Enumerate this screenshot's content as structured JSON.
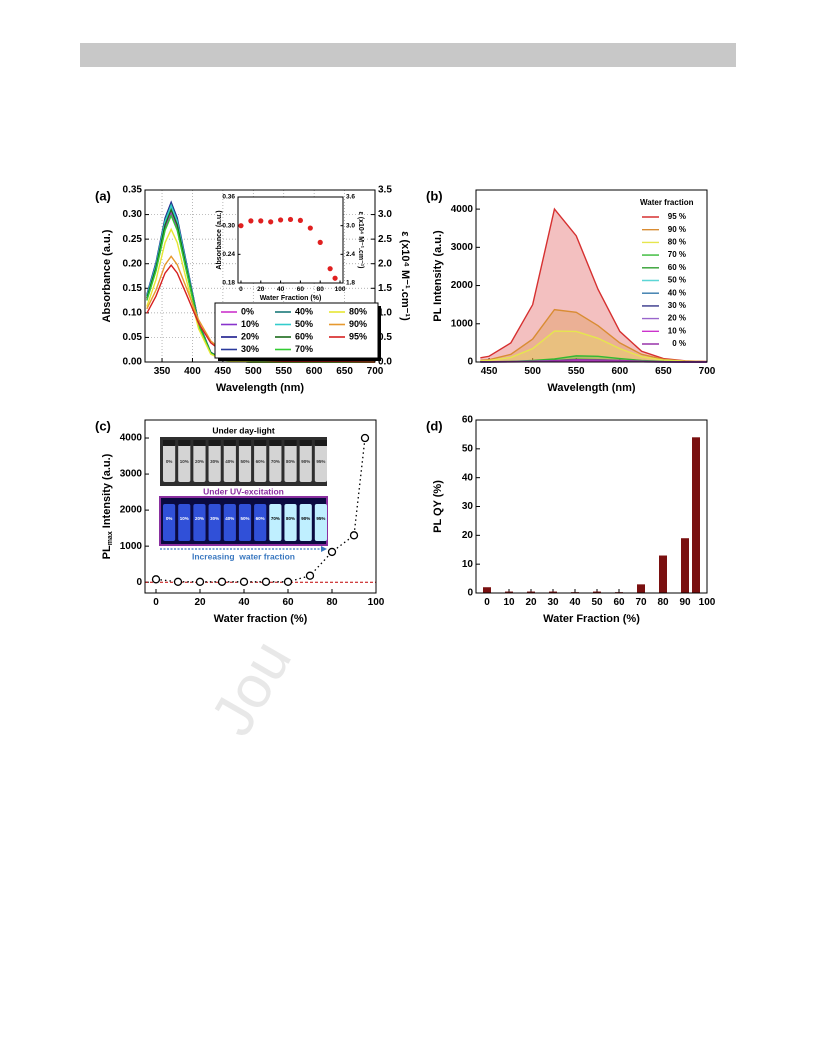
{
  "watermark": "Jou",
  "chart_data": [
    {
      "type": "line",
      "label": "(a)",
      "xlabel": "Wavelength (nm)",
      "ylabel": "Absorbance (a.u.)",
      "y2label": "ε (x10⁴ M⁻¹.cm⁻¹)",
      "xlim": [
        322,
        700
      ],
      "xticks": [
        350,
        400,
        450,
        500,
        550,
        600,
        650,
        700
      ],
      "ylim": [
        0,
        0.35
      ],
      "yticks": [
        {
          "value": 0,
          "label": "0.00"
        },
        0.05,
        {
          "value": 0.1,
          "label": "0.10"
        },
        0.15,
        {
          "value": 0.2,
          "label": "0.20"
        },
        0.25,
        {
          "value": 0.3,
          "label": "0.30"
        },
        0.35
      ],
      "y2lim": [
        0,
        3.5
      ],
      "y2ticks": [
        {
          "value": 0,
          "label": "0.0"
        },
        0.5,
        {
          "value": 1,
          "label": "1.0"
        },
        1.5,
        {
          "value": 2,
          "label": "2.0"
        },
        2.5,
        {
          "value": 3,
          "label": "3.0"
        },
        3.5
      ],
      "grid": true,
      "legend": "lower right",
      "legend_columns": 3,
      "x": [
        325,
        340,
        355,
        365,
        375,
        390,
        410,
        430,
        450,
        475,
        500,
        600,
        700
      ],
      "series": [
        {
          "name": "0%",
          "color": "#cc33cc",
          "values": [
            0.128,
            0.189,
            0.275,
            0.305,
            0.275,
            0.189,
            0.076,
            0.018,
            0.005,
            0.001,
            0,
            0,
            0
          ]
        },
        {
          "name": "10%",
          "color": "#8833cc",
          "values": [
            0.126,
            0.186,
            0.27,
            0.3,
            0.27,
            0.186,
            0.075,
            0.018,
            0.005,
            0.001,
            0,
            0,
            0
          ]
        },
        {
          "name": "20%",
          "color": "#1a1a8c",
          "values": [
            0.137,
            0.202,
            0.293,
            0.325,
            0.293,
            0.202,
            0.081,
            0.02,
            0.005,
            0.001,
            0,
            0,
            0
          ]
        },
        {
          "name": "30%",
          "color": "#2a3a9c",
          "values": [
            0.135,
            0.2,
            0.29,
            0.322,
            0.29,
            0.2,
            0.081,
            0.019,
            0.005,
            0.001,
            0,
            0,
            0
          ]
        },
        {
          "name": "40%",
          "color": "#1a7a7a",
          "values": [
            0.134,
            0.198,
            0.288,
            0.32,
            0.288,
            0.198,
            0.08,
            0.019,
            0.005,
            0.001,
            0,
            0,
            0
          ]
        },
        {
          "name": "50%",
          "color": "#33cccc",
          "values": [
            0.134,
            0.197,
            0.286,
            0.318,
            0.286,
            0.197,
            0.08,
            0.019,
            0.005,
            0.001,
            0,
            0,
            0
          ]
        },
        {
          "name": "60%",
          "color": "#1a6a1a",
          "values": [
            0.13,
            0.192,
            0.279,
            0.31,
            0.279,
            0.192,
            0.078,
            0.019,
            0.005,
            0.001,
            0,
            0,
            0
          ]
        },
        {
          "name": "70%",
          "color": "#33cc33",
          "values": [
            0.125,
            0.185,
            0.268,
            0.298,
            0.268,
            0.185,
            0.075,
            0.018,
            0.004,
            0.001,
            0,
            0,
            0
          ]
        },
        {
          "name": "80%",
          "color": "#e6e633",
          "values": [
            0.113,
            0.167,
            0.243,
            0.27,
            0.243,
            0.167,
            0.068,
            0.016,
            0.004,
            0.001,
            0,
            0,
            0
          ]
        },
        {
          "name": "90%",
          "color": "#e6992e",
          "values": [
            0.108,
            0.146,
            0.198,
            0.215,
            0.198,
            0.151,
            0.086,
            0.043,
            0.022,
            0.009,
            0.004,
            0.001,
            0
          ]
        },
        {
          "name": "95%",
          "color": "#d62020",
          "values": [
            0.099,
            0.134,
            0.181,
            0.197,
            0.181,
            0.138,
            0.079,
            0.039,
            0.02,
            0.008,
            0.004,
            0.001,
            0
          ]
        }
      ]
    },
    {
      "type": "scatter",
      "xlabel": "Water Fraction (%)",
      "ylabel": "Absorbance (a.u.)",
      "y2label": "ε (x10⁴ M⁻¹.cm⁻¹)",
      "xlim": [
        -3,
        103
      ],
      "xticks": [
        0,
        20,
        40,
        60,
        80,
        100
      ],
      "ylim": [
        0.18,
        0.36
      ],
      "yticks": [
        0.18,
        0.24,
        {
          "value": 0.3,
          "label": "0.30"
        },
        0.36
      ],
      "y2lim": [
        1.8,
        3.6
      ],
      "y2ticks": [
        1.8,
        2.4,
        {
          "value": 3,
          "label": "3.0"
        },
        3.6
      ],
      "markers": "filled",
      "color": "#e02020",
      "x": [
        0,
        10,
        20,
        30,
        40,
        50,
        60,
        70,
        80,
        90,
        95
      ],
      "values": [
        0.3,
        0.31,
        0.31,
        0.308,
        0.312,
        0.313,
        0.311,
        0.295,
        0.265,
        0.21,
        0.19
      ]
    },
    {
      "type": "line",
      "label": "(b)",
      "xlabel": "Wavelength (nm)",
      "ylabel": "PL Intensity (a.u.)",
      "fill": true,
      "xlim": [
        435,
        700
      ],
      "xticks": [
        450,
        500,
        550,
        600,
        650,
        700
      ],
      "ylim": [
        0,
        4500
      ],
      "yticks": [
        0,
        1000,
        2000,
        3000,
        4000
      ],
      "legend": "upper right",
      "legend_title": "Water fraction",
      "x": [
        440,
        450,
        475,
        500,
        525,
        550,
        575,
        600,
        625,
        650,
        675,
        700
      ],
      "series": [
        {
          "name": "95 %",
          "color": "#d63030",
          "values": [
            110,
            150,
            500,
            1500,
            4000,
            3300,
            1900,
            800,
            280,
            90,
            30,
            10
          ]
        },
        {
          "name": "90 %",
          "color": "#d98c33",
          "values": [
            45,
            60,
            200,
            600,
            1370,
            1300,
            950,
            500,
            200,
            70,
            25,
            10
          ]
        },
        {
          "name": "80 %",
          "color": "#e6e64d",
          "values": [
            30,
            40,
            120,
            350,
            810,
            800,
            620,
            350,
            140,
            50,
            20,
            5
          ]
        },
        {
          "name": "70 %",
          "color": "#33b833",
          "values": [
            4,
            5,
            15,
            40,
            80,
            160,
            150,
            90,
            40,
            15,
            5,
            0
          ]
        },
        {
          "name": "60 %",
          "color": "#2e9e2e",
          "values": [
            2,
            3,
            10,
            25,
            45,
            70,
            60,
            40,
            15,
            5,
            0,
            0
          ]
        },
        {
          "name": "50 %",
          "color": "#5cd6d6",
          "values": [
            2,
            3,
            8,
            20,
            35,
            50,
            45,
            30,
            10,
            4,
            0,
            0
          ]
        },
        {
          "name": "40 %",
          "color": "#3377aa",
          "values": [
            1,
            2,
            5,
            15,
            25,
            35,
            30,
            20,
            8,
            3,
            0,
            0
          ]
        },
        {
          "name": "30 %",
          "color": "#333388",
          "values": [
            1,
            2,
            5,
            12,
            20,
            28,
            25,
            15,
            6,
            2,
            0,
            0
          ]
        },
        {
          "name": "20 %",
          "color": "#9966cc",
          "values": [
            1,
            2,
            4,
            10,
            15,
            22,
            20,
            12,
            5,
            2,
            0,
            0
          ]
        },
        {
          "name": "10 %",
          "color": "#cc33cc",
          "values": [
            1,
            1,
            3,
            8,
            12,
            18,
            15,
            10,
            4,
            1,
            0,
            0
          ]
        },
        {
          "name": "0 %",
          "color": "#9933aa",
          "values": [
            4,
            5,
            10,
            20,
            35,
            60,
            55,
            40,
            20,
            8,
            3,
            0
          ]
        }
      ]
    },
    {
      "type": "scatter",
      "label": "(c)",
      "xlabel": "Water fraction (%)",
      "ylabel_parts": [
        "PL",
        "max",
        " Intensity (a.u.)"
      ],
      "xlim": [
        -5,
        100
      ],
      "xticks": [
        0,
        20,
        40,
        60,
        80,
        100
      ],
      "ylim": [
        -300,
        4500
      ],
      "yticks": [
        0,
        1000,
        2000,
        3000,
        4000
      ],
      "markers": "open",
      "color": "#000000",
      "connector": "dotted",
      "reference_line": {
        "value": 0,
        "color": "#c00000"
      },
      "x": [
        0,
        10,
        20,
        30,
        40,
        50,
        60,
        70,
        80,
        90,
        95
      ],
      "values": [
        80,
        10,
        10,
        10,
        10,
        10,
        10,
        180,
        840,
        1300,
        4000
      ],
      "photos": {
        "day_title": "Under day-light",
        "uv_title": "Under UV-excitation",
        "vials": [
          "0%",
          "10%",
          "20%",
          "30%",
          "40%",
          "50%",
          "60%",
          "70%",
          "80%",
          "90%",
          "95%"
        ],
        "arrow_label": "Increasing  water fraction"
      }
    },
    {
      "type": "bar",
      "label": "(d)",
      "xlabel": "Water Fraction (%)",
      "ylabel": "PL QY (%)",
      "xlim": [
        -5,
        100
      ],
      "xticks": [
        0,
        10,
        20,
        30,
        40,
        50,
        60,
        70,
        80,
        90,
        100
      ],
      "ylim": [
        0,
        60
      ],
      "yticks": [
        0,
        10,
        20,
        30,
        40,
        50,
        60
      ],
      "color": "#7a1010",
      "x": [
        0,
        10,
        20,
        30,
        40,
        50,
        60,
        70,
        80,
        90,
        95
      ],
      "values": [
        2,
        0.5,
        0.5,
        0.5,
        0.3,
        0.5,
        0.3,
        3,
        13,
        19,
        54
      ]
    }
  ]
}
